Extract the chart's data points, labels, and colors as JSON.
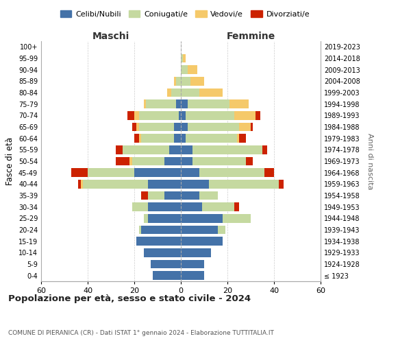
{
  "age_groups": [
    "100+",
    "95-99",
    "90-94",
    "85-89",
    "80-84",
    "75-79",
    "70-74",
    "65-69",
    "60-64",
    "55-59",
    "50-54",
    "45-49",
    "40-44",
    "35-39",
    "30-34",
    "25-29",
    "20-24",
    "15-19",
    "10-14",
    "5-9",
    "0-4"
  ],
  "birth_years": [
    "≤ 1923",
    "1924-1928",
    "1929-1933",
    "1934-1938",
    "1939-1943",
    "1944-1948",
    "1949-1953",
    "1954-1958",
    "1959-1963",
    "1964-1968",
    "1969-1973",
    "1974-1978",
    "1979-1983",
    "1984-1988",
    "1989-1993",
    "1994-1998",
    "1999-2003",
    "2004-2008",
    "2009-2013",
    "2014-2018",
    "2019-2023"
  ],
  "colors": {
    "celibi": "#4472a8",
    "coniugati": "#c5d9a0",
    "vedovi": "#f5c96a",
    "divorziati": "#cc2200"
  },
  "males": {
    "celibi": [
      0,
      0,
      0,
      0,
      0,
      2,
      1,
      3,
      3,
      5,
      7,
      20,
      14,
      7,
      14,
      14,
      17,
      19,
      16,
      13,
      12
    ],
    "coniugati": [
      0,
      0,
      0,
      2,
      4,
      13,
      17,
      15,
      14,
      20,
      14,
      20,
      28,
      7,
      7,
      2,
      1,
      0,
      0,
      0,
      0
    ],
    "vedovi": [
      0,
      0,
      0,
      1,
      2,
      1,
      2,
      1,
      1,
      0,
      1,
      0,
      1,
      0,
      0,
      0,
      0,
      0,
      0,
      0,
      0
    ],
    "divorziati": [
      0,
      0,
      0,
      0,
      0,
      0,
      3,
      2,
      2,
      3,
      6,
      7,
      1,
      3,
      0,
      0,
      0,
      0,
      0,
      0,
      0
    ]
  },
  "females": {
    "celibi": [
      0,
      0,
      0,
      0,
      0,
      3,
      2,
      3,
      2,
      5,
      5,
      8,
      12,
      8,
      9,
      18,
      16,
      18,
      13,
      10,
      10
    ],
    "coniugati": [
      0,
      1,
      3,
      4,
      8,
      18,
      21,
      22,
      22,
      30,
      23,
      28,
      30,
      8,
      14,
      12,
      3,
      0,
      0,
      0,
      0
    ],
    "vedovi": [
      0,
      1,
      4,
      6,
      10,
      8,
      9,
      5,
      1,
      0,
      0,
      0,
      0,
      0,
      0,
      0,
      0,
      0,
      0,
      0,
      0
    ],
    "divorziati": [
      0,
      0,
      0,
      0,
      0,
      0,
      2,
      1,
      3,
      2,
      3,
      4,
      2,
      0,
      2,
      0,
      0,
      0,
      0,
      0,
      0
    ]
  },
  "title": "Popolazione per età, sesso e stato civile - 2024",
  "subtitle": "COMUNE DI PIERANICA (CR) - Dati ISTAT 1° gennaio 2024 - Elaborazione TUTTITALIA.IT",
  "xlabel_left": "Maschi",
  "xlabel_right": "Femmine",
  "ylabel_left": "Fasce di età",
  "ylabel_right": "Anni di nascita",
  "xlim": 60,
  "legend_labels": [
    "Celibi/Nubili",
    "Coniugati/e",
    "Vedovi/e",
    "Divorziati/e"
  ],
  "background_color": "#ffffff",
  "grid_color": "#cccccc"
}
